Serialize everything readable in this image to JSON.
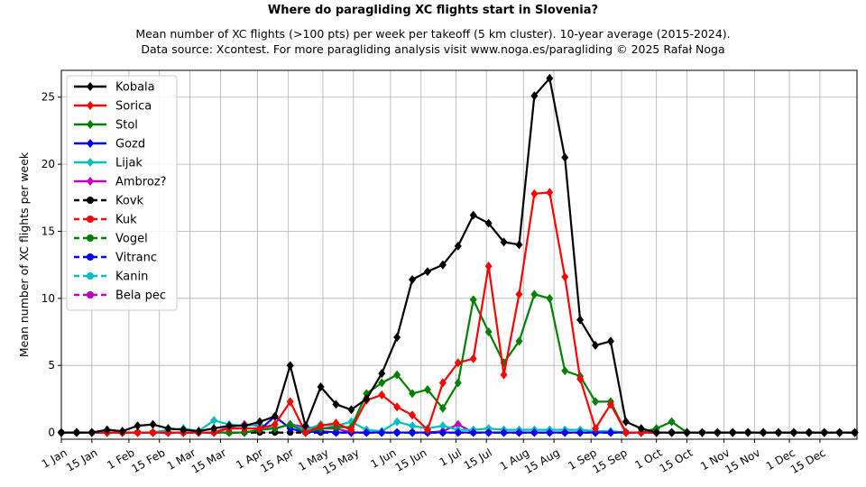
{
  "chart_data": {
    "type": "line",
    "title": "Where do paragliding XC flights start in Slovenia?",
    "subtitle_lines": [
      "Mean number of XC flights (>100 pts) per week per takeoff (5 km cluster). 10-year average (2015-2024).",
      "Data source: Xcontest. For more paragliding analysis visit www.noga.es/paragliding © 2025 Rafał Noga"
    ],
    "xlabel": "",
    "ylabel": "Mean number of XC flights per week",
    "xlim": [
      1,
      366
    ],
    "ylim": [
      -0.5,
      27
    ],
    "x_ticks": [
      {
        "day": 1,
        "label": "1 Jan"
      },
      {
        "day": 15,
        "label": "15 Jan"
      },
      {
        "day": 32,
        "label": "1 Feb"
      },
      {
        "day": 46,
        "label": "15 Feb"
      },
      {
        "day": 60,
        "label": "1 Mar"
      },
      {
        "day": 74,
        "label": "15 Mar"
      },
      {
        "day": 91,
        "label": "1 Apr"
      },
      {
        "day": 105,
        "label": "15 Apr"
      },
      {
        "day": 121,
        "label": "1 May"
      },
      {
        "day": 135,
        "label": "15 May"
      },
      {
        "day": 152,
        "label": "1 Jun"
      },
      {
        "day": 166,
        "label": "15 Jun"
      },
      {
        "day": 182,
        "label": "1 Jul"
      },
      {
        "day": 196,
        "label": "15 Jul"
      },
      {
        "day": 213,
        "label": "1 Aug"
      },
      {
        "day": 227,
        "label": "15 Aug"
      },
      {
        "day": 244,
        "label": "1 Sep"
      },
      {
        "day": 258,
        "label": "15 Sep"
      },
      {
        "day": 274,
        "label": "1 Oct"
      },
      {
        "day": 288,
        "label": "15 Oct"
      },
      {
        "day": 305,
        "label": "1 Nov"
      },
      {
        "day": 319,
        "label": "15 Nov"
      },
      {
        "day": 335,
        "label": "1 Dec"
      },
      {
        "day": 349,
        "label": "15 Dec"
      }
    ],
    "y_ticks": [
      0,
      5,
      10,
      15,
      20,
      25
    ],
    "grid": true,
    "legend_position": "top-left",
    "week_days": [
      1,
      8,
      15,
      22,
      29,
      36,
      43,
      50,
      57,
      64,
      71,
      78,
      85,
      92,
      99,
      106,
      113,
      120,
      127,
      134,
      141,
      148,
      155,
      162,
      169,
      176,
      183,
      190,
      197,
      204,
      211,
      218,
      225,
      232,
      239,
      246,
      253,
      260,
      267,
      274,
      281,
      288,
      295,
      302,
      309,
      316,
      323,
      330,
      337,
      344,
      351,
      358,
      365
    ],
    "series": [
      {
        "name": "Kobala",
        "color": "#000000",
        "dash": false,
        "marker": "diamond",
        "values": [
          0,
          0,
          0,
          0.2,
          0.1,
          0.5,
          0.6,
          0.3,
          0.2,
          0.1,
          0.3,
          0.5,
          0.5,
          0.8,
          1.2,
          5.0,
          0.5,
          3.4,
          2.1,
          1.7,
          2.5,
          4.4,
          7.1,
          11.4,
          12.0,
          12.5,
          13.9,
          16.2,
          15.6,
          14.2,
          14.0,
          25.1,
          26.4,
          20.5,
          8.4,
          6.5,
          6.8,
          0.8,
          0.3,
          0,
          0,
          0,
          0,
          0,
          0,
          0,
          0,
          0,
          0,
          0,
          0,
          0,
          0
        ]
      },
      {
        "name": "Sorica",
        "color": "#ff0000",
        "dash": false,
        "marker": "diamond",
        "values": [
          0,
          0,
          0,
          0,
          0,
          0,
          0,
          0,
          0,
          0,
          0,
          0.3,
          0.3,
          0.3,
          0.6,
          2.3,
          0,
          0.5,
          0.7,
          0.2,
          2.4,
          2.8,
          1.9,
          1.3,
          0.2,
          3.7,
          5.2,
          5.5,
          12.4,
          4.3,
          10.3,
          17.8,
          17.9,
          11.6,
          4.0,
          0.3,
          2.1,
          0,
          0,
          0,
          0,
          0,
          0,
          0,
          0,
          0,
          0,
          0,
          0,
          0,
          0,
          0,
          0
        ]
      },
      {
        "name": "Stol",
        "color": "#008000",
        "dash": false,
        "marker": "diamond",
        "values": [
          0,
          0,
          0,
          0,
          0,
          0,
          0,
          0,
          0,
          0,
          0,
          0,
          0,
          0.2,
          0.3,
          0.6,
          0,
          0.3,
          0.4,
          0.4,
          2.9,
          3.7,
          4.3,
          2.9,
          3.2,
          1.8,
          3.7,
          9.9,
          7.5,
          5.2,
          6.8,
          10.3,
          10.0,
          4.6,
          4.2,
          2.3,
          2.3,
          0,
          0,
          0.3,
          0.8,
          0,
          0,
          0,
          0,
          0,
          0,
          0,
          0,
          0,
          0,
          0,
          0
        ]
      },
      {
        "name": "Gozd",
        "color": "#0000ff",
        "dash": false,
        "marker": "diamond",
        "values": [
          0,
          0,
          0,
          0,
          0,
          0,
          0,
          0,
          0,
          0,
          0,
          0,
          0,
          0.2,
          1.2,
          0.3,
          0,
          0.1,
          0,
          0,
          0,
          0,
          0,
          0,
          0,
          0,
          0,
          0,
          0,
          0,
          0,
          0,
          0,
          0,
          0,
          0,
          0,
          0,
          0,
          0,
          0,
          0,
          0,
          0,
          0,
          0,
          0,
          0,
          0,
          0,
          0,
          0,
          0
        ]
      },
      {
        "name": "Lijak",
        "color": "#00bfbf",
        "dash": false,
        "marker": "diamond",
        "values": [
          0,
          0,
          0,
          0,
          0,
          0,
          0,
          0.2,
          0.3,
          0.1,
          0.9,
          0.6,
          0.5,
          0.6,
          0.3,
          0.6,
          0.2,
          0.6,
          0.5,
          0.8,
          0.2,
          0.1,
          0.8,
          0.5,
          0.3,
          0.5,
          0.2,
          0.2,
          0.3,
          0.2,
          0.2,
          0.2,
          0.2,
          0.2,
          0.2,
          0.1,
          0.1,
          0,
          0,
          0,
          0,
          0,
          0,
          0,
          0,
          0,
          0,
          0,
          0,
          0,
          0,
          0,
          0
        ]
      },
      {
        "name": "Ambroz?",
        "color": "#bf00bf",
        "dash": false,
        "marker": "diamond",
        "values": [
          0,
          0,
          0,
          0,
          0,
          0,
          0,
          0,
          0,
          0,
          0,
          0.4,
          0.6,
          0.5,
          0.3,
          0.6,
          0.4,
          0.3,
          0.3,
          0,
          0,
          0,
          0,
          0,
          0,
          0.1,
          0.6,
          0,
          0,
          0,
          0,
          0,
          0,
          0,
          0,
          0,
          0,
          0,
          0,
          0,
          0,
          0,
          0,
          0,
          0,
          0,
          0,
          0,
          0,
          0,
          0,
          0,
          0
        ]
      },
      {
        "name": "Kovk",
        "color": "#000000",
        "dash": true,
        "marker": "circle",
        "values": [
          0,
          0,
          0,
          0,
          0,
          0,
          0,
          0,
          0,
          0,
          0,
          0,
          0,
          0,
          0,
          0,
          0,
          0,
          0,
          0,
          0,
          0,
          0,
          0,
          0,
          0,
          0,
          0,
          0,
          0,
          0,
          0,
          0,
          0,
          0,
          0,
          0,
          0,
          0,
          0,
          0,
          0,
          0,
          0,
          0,
          0,
          0,
          0,
          0,
          0,
          0,
          0,
          0
        ]
      },
      {
        "name": "Kuk",
        "color": "#ff0000",
        "dash": true,
        "marker": "circle",
        "values": [
          0,
          0,
          0,
          0,
          0,
          0,
          0,
          0,
          0,
          0,
          0,
          0,
          0,
          0,
          0,
          0,
          0,
          0,
          0,
          0,
          0,
          0,
          0,
          0,
          0,
          0,
          0,
          0,
          0,
          0,
          0,
          0,
          0,
          0,
          0,
          0,
          0,
          0,
          0,
          0,
          0,
          0,
          0,
          0,
          0,
          0,
          0,
          0,
          0,
          0,
          0,
          0,
          0
        ]
      },
      {
        "name": "Vogel",
        "color": "#008000",
        "dash": true,
        "marker": "circle",
        "values": [
          0,
          0,
          0,
          0,
          0,
          0,
          0,
          0,
          0,
          0,
          0,
          0,
          0,
          0,
          0,
          0,
          0,
          0,
          0,
          0,
          0,
          0,
          0,
          0,
          0,
          0,
          0,
          0,
          0,
          0,
          0,
          0,
          0,
          0,
          0,
          0,
          0,
          0,
          0,
          0,
          0,
          0,
          0,
          0,
          0,
          0,
          0,
          0,
          0,
          0,
          0,
          0,
          0
        ]
      },
      {
        "name": "Vitranc",
        "color": "#0000ff",
        "dash": true,
        "marker": "circle",
        "values": [
          0,
          0,
          0,
          0,
          0,
          0,
          0,
          0,
          0,
          0,
          0,
          0,
          0,
          0,
          0,
          0,
          0,
          0,
          0,
          0,
          0,
          0,
          0,
          0,
          0,
          0,
          0,
          0,
          0,
          0,
          0,
          0,
          0,
          0,
          0,
          0,
          0,
          0,
          0,
          0,
          0,
          0,
          0,
          0,
          0,
          0,
          0,
          0,
          0,
          0,
          0,
          0,
          0
        ]
      },
      {
        "name": "Kanin",
        "color": "#00bfbf",
        "dash": true,
        "marker": "circle",
        "values": [
          0,
          0,
          0,
          0,
          0,
          0,
          0,
          0,
          0,
          0,
          0,
          0,
          0,
          0,
          0,
          0,
          0,
          0,
          0,
          0,
          0,
          0,
          0,
          0,
          0,
          0,
          0,
          0,
          0,
          0,
          0,
          0,
          0,
          0,
          0,
          0,
          0,
          0,
          0,
          0,
          0,
          0,
          0,
          0,
          0,
          0,
          0,
          0,
          0,
          0,
          0,
          0,
          0
        ]
      },
      {
        "name": "Bela pec",
        "color": "#bf00bf",
        "dash": true,
        "marker": "circle",
        "values": [
          0,
          0,
          0,
          0,
          0,
          0,
          0,
          0,
          0,
          0,
          0,
          0,
          0,
          0,
          0,
          0,
          0,
          0,
          0,
          0,
          0,
          0,
          0,
          0,
          0,
          0,
          0,
          0,
          0,
          0,
          0,
          0,
          0,
          0,
          0,
          0,
          0,
          0,
          0,
          0,
          0,
          0,
          0,
          0,
          0,
          0,
          0,
          0,
          0,
          0,
          0,
          0,
          0
        ]
      }
    ]
  }
}
